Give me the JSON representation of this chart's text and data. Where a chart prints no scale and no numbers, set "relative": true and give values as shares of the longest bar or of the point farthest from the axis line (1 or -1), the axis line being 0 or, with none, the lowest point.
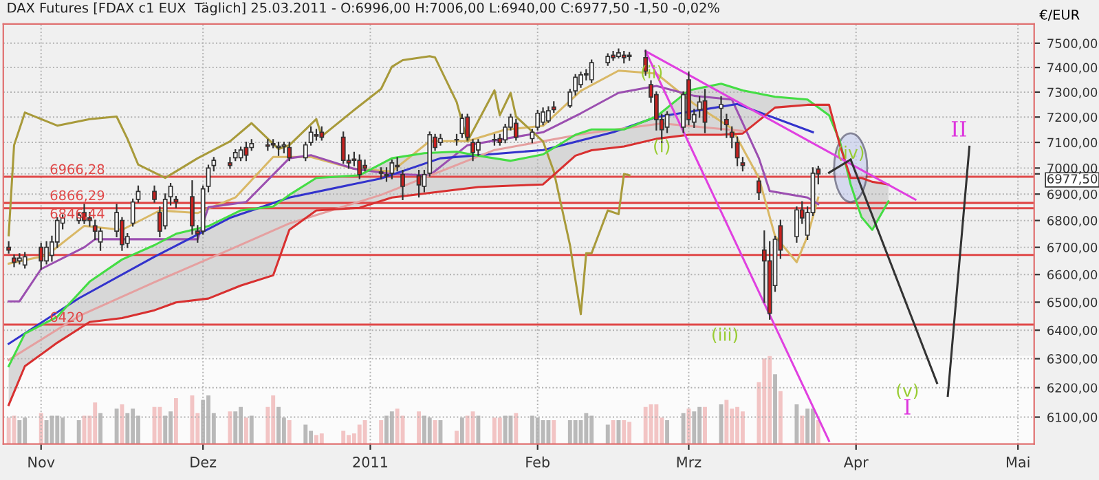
{
  "chart_data": [
    {
      "type": "candlestick",
      "title": "DAX Futures [FDAX c1 EUX  Täglich] 25.03.2011 - O:6996,00 H:7006,00 L:6940,00 C:6977,50 -1,50 -0,02%",
      "ylabel": "€/EUR",
      "log": true,
      "grid": true,
      "xlim": [
        "2010-10-25",
        "2011-05-04"
      ],
      "xticks": [
        {
          "value": "2010-11-01",
          "label": "Nov"
        },
        {
          "value": "2010-12-01",
          "label": "Dez"
        },
        {
          "value": "2011-01-01",
          "label": "2011"
        },
        {
          "value": "2011-02-01",
          "label": "Feb"
        },
        {
          "value": "2011-03-01",
          "label": "Mrz"
        },
        {
          "value": "2011-04-01",
          "label": "Apr"
        },
        {
          "value": "2011-05-01",
          "label": "Mai"
        }
      ],
      "ylim": [
        6010,
        7580
      ],
      "yticks": [
        {
          "value": 6100,
          "label": "6100,00"
        },
        {
          "value": 6200,
          "label": "6200,00"
        },
        {
          "value": 6300,
          "label": "6300,00"
        },
        {
          "value": 6400,
          "label": "6400,00"
        },
        {
          "value": 6500,
          "label": "6500,00"
        },
        {
          "value": 6600,
          "label": "6600,00"
        },
        {
          "value": 6700,
          "label": "6700,00"
        },
        {
          "value": 6800,
          "label": "6800,00"
        },
        {
          "value": 6900,
          "label": "6900,00"
        },
        {
          "value": 6977.5,
          "label": "6977,50"
        },
        {
          "value": 7000,
          "label": "7000,00"
        },
        {
          "value": 7100,
          "label": "7100,00"
        },
        {
          "value": 7200,
          "label": "7200,00"
        },
        {
          "value": 7300,
          "label": "7300,00"
        },
        {
          "value": 7400,
          "label": "7400,00"
        },
        {
          "value": 7500,
          "label": "7500,00"
        }
      ],
      "x": [
        "2010-10-26",
        "2010-10-27",
        "2010-10-28",
        "2010-10-29",
        "2010-11-01",
        "2010-11-02",
        "2010-11-03",
        "2010-11-04",
        "2010-11-05",
        "2010-11-08",
        "2010-11-09",
        "2010-11-10",
        "2010-11-11",
        "2010-11-12",
        "2010-11-15",
        "2010-11-16",
        "2010-11-17",
        "2010-11-18",
        "2010-11-19",
        "2010-11-22",
        "2010-11-23",
        "2010-11-24",
        "2010-11-25",
        "2010-11-26",
        "2010-11-29",
        "2010-11-30",
        "2010-12-01",
        "2010-12-02",
        "2010-12-03",
        "2010-12-06",
        "2010-12-07",
        "2010-12-08",
        "2010-12-09",
        "2010-12-10",
        "2010-12-13",
        "2010-12-14",
        "2010-12-15",
        "2010-12-16",
        "2010-12-17",
        "2010-12-20",
        "2010-12-21",
        "2010-12-22",
        "2010-12-23",
        "2010-12-27",
        "2010-12-28",
        "2010-12-29",
        "2010-12-30",
        "2010-12-31",
        "2011-01-03",
        "2011-01-04",
        "2011-01-05",
        "2011-01-06",
        "2011-01-07",
        "2011-01-10",
        "2011-01-11",
        "2011-01-12",
        "2011-01-13",
        "2011-01-14",
        "2011-01-17",
        "2011-01-18",
        "2011-01-19",
        "2011-01-20",
        "2011-01-21",
        "2011-01-24",
        "2011-01-25",
        "2011-01-26",
        "2011-01-27",
        "2011-01-28",
        "2011-01-31",
        "2011-02-01",
        "2011-02-02",
        "2011-02-03",
        "2011-02-04",
        "2011-02-07",
        "2011-02-08",
        "2011-02-09",
        "2011-02-10",
        "2011-02-11",
        "2011-02-14",
        "2011-02-15",
        "2011-02-16",
        "2011-02-17",
        "2011-02-18",
        "2011-02-21",
        "2011-02-22",
        "2011-02-23",
        "2011-02-24",
        "2011-02-25",
        "2011-02-28",
        "2011-03-01",
        "2011-03-02",
        "2011-03-03",
        "2011-03-04",
        "2011-03-07",
        "2011-03-08",
        "2011-03-09",
        "2011-03-10",
        "2011-03-11",
        "2011-03-14",
        "2011-03-15",
        "2011-03-16",
        "2011-03-17",
        "2011-03-18",
        "2011-03-21",
        "2011-03-22",
        "2011-03-23",
        "2011-03-24",
        "2011-03-25"
      ],
      "ohlc": [
        [
          6700,
          6720,
          6680,
          6690
        ],
        [
          6660,
          6670,
          6630,
          6645
        ],
        [
          6650,
          6675,
          6640,
          6660
        ],
        [
          6635,
          6680,
          6625,
          6665
        ],
        [
          6700,
          6715,
          6620,
          6650
        ],
        [
          6650,
          6720,
          6640,
          6700
        ],
        [
          6670,
          6740,
          6650,
          6720
        ],
        [
          6720,
          6810,
          6700,
          6800
        ],
        [
          6790,
          6820,
          6770,
          6810
        ],
        [
          6800,
          6830,
          6790,
          6820
        ],
        [
          6830,
          6860,
          6790,
          6800
        ],
        [
          6810,
          6830,
          6780,
          6800
        ],
        [
          6780,
          6800,
          6730,
          6760
        ],
        [
          6720,
          6770,
          6690,
          6760
        ],
        [
          6760,
          6860,
          6740,
          6830
        ],
        [
          6800,
          6810,
          6690,
          6710
        ],
        [
          6715,
          6750,
          6700,
          6740
        ],
        [
          6790,
          6880,
          6780,
          6870
        ],
        [
          6880,
          6930,
          6870,
          6910
        ],
        [
          6910,
          6930,
          6870,
          6880
        ],
        [
          6830,
          6850,
          6740,
          6760
        ],
        [
          6780,
          6900,
          6770,
          6880
        ],
        [
          6890,
          6940,
          6860,
          6930
        ],
        [
          6880,
          6890,
          6850,
          6870
        ],
        [
          6890,
          6950,
          6750,
          6780
        ],
        [
          6760,
          6780,
          6720,
          6750
        ],
        [
          6760,
          6930,
          6750,
          6920
        ],
        [
          6930,
          7010,
          6910,
          7000
        ],
        [
          7010,
          7040,
          6990,
          7030
        ],
        [
          7020,
          7040,
          7000,
          7010
        ],
        [
          7040,
          7070,
          7030,
          7060
        ],
        [
          7040,
          7080,
          7030,
          7070
        ],
        [
          7080,
          7100,
          7030,
          7050
        ],
        [
          7080,
          7110,
          7070,
          7095
        ],
        [
          7090,
          7110,
          7070,
          7085
        ],
        [
          7095,
          7110,
          7080,
          7090
        ],
        [
          7080,
          7100,
          7050,
          7085
        ],
        [
          7085,
          7100,
          7060,
          7090
        ],
        [
          7080,
          7100,
          7030,
          7040
        ],
        [
          7040,
          7100,
          7030,
          7090
        ],
        [
          7100,
          7160,
          7090,
          7140
        ],
        [
          7130,
          7150,
          7110,
          7125
        ],
        [
          7140,
          7160,
          7110,
          7120
        ],
        [
          7120,
          7140,
          7020,
          7030
        ],
        [
          7030,
          7050,
          7000,
          7020
        ],
        [
          7035,
          7060,
          7010,
          7030
        ],
        [
          7030,
          7050,
          6960,
          6975
        ],
        [
          7010,
          7030,
          6990,
          7000
        ],
        [
          6985,
          7000,
          6960,
          6980
        ],
        [
          6970,
          7000,
          6950,
          6975
        ],
        [
          6980,
          7030,
          6960,
          7020
        ],
        [
          7010,
          7040,
          6990,
          7005
        ],
        [
          6975,
          6990,
          6880,
          6930
        ],
        [
          6970,
          6990,
          6890,
          6935
        ],
        [
          6930,
          6990,
          6910,
          6975
        ],
        [
          6980,
          7140,
          6970,
          7130
        ],
        [
          7120,
          7130,
          7070,
          7080
        ],
        [
          7100,
          7130,
          7090,
          7115
        ],
        [
          7110,
          7130,
          7090,
          7110
        ],
        [
          7135,
          7210,
          7120,
          7195
        ],
        [
          7200,
          7210,
          7110,
          7120
        ],
        [
          7100,
          7110,
          7030,
          7060
        ],
        [
          7070,
          7110,
          7050,
          7100
        ],
        [
          7110,
          7130,
          7090,
          7110
        ],
        [
          7115,
          7130,
          7090,
          7100
        ],
        [
          7110,
          7170,
          7100,
          7160
        ],
        [
          7160,
          7210,
          7150,
          7200
        ],
        [
          7175,
          7190,
          7110,
          7120
        ],
        [
          7115,
          7150,
          7100,
          7140
        ],
        [
          7160,
          7225,
          7150,
          7215
        ],
        [
          7180,
          7235,
          7170,
          7220
        ],
        [
          7185,
          7240,
          7180,
          7225
        ],
        [
          7240,
          7260,
          7220,
          7230
        ],
        [
          7245,
          7310,
          7240,
          7300
        ],
        [
          7305,
          7370,
          7290,
          7360
        ],
        [
          7330,
          7380,
          7320,
          7370
        ],
        [
          7370,
          7390,
          7350,
          7375
        ],
        [
          7350,
          7430,
          7340,
          7420
        ],
        [
          7420,
          7455,
          7410,
          7445
        ],
        [
          7450,
          7465,
          7430,
          7440
        ],
        [
          7445,
          7475,
          7440,
          7460
        ],
        [
          7450,
          7465,
          7420,
          7440
        ],
        [
          7450,
          7460,
          7430,
          7445
        ],
        [
          7440,
          7470,
          7370,
          7385
        ],
        [
          7330,
          7345,
          7260,
          7280
        ],
        [
          7290,
          7300,
          7150,
          7190
        ],
        [
          7190,
          7210,
          7100,
          7150
        ],
        [
          7160,
          7220,
          7140,
          7210
        ],
        [
          7160,
          7300,
          7140,
          7290
        ],
        [
          7350,
          7380,
          7170,
          7190
        ],
        [
          7180,
          7230,
          7160,
          7210
        ],
        [
          7230,
          7280,
          7200,
          7260
        ],
        [
          7265,
          7310,
          7140,
          7180
        ],
        [
          7235,
          7280,
          7150,
          7250
        ],
        [
          7190,
          7210,
          7120,
          7170
        ],
        [
          7140,
          7160,
          7080,
          7120
        ],
        [
          7100,
          7120,
          7010,
          7040
        ],
        [
          7020,
          7040,
          6990,
          7010
        ],
        [
          6950,
          6960,
          6880,
          6905
        ],
        [
          6690,
          6760,
          6500,
          6650
        ],
        [
          6650,
          6720,
          6440,
          6460
        ],
        [
          6560,
          6740,
          6540,
          6730
        ],
        [
          6780,
          6800,
          6660,
          6690
        ],
        [
          6740,
          6850,
          6720,
          6840
        ],
        [
          6840,
          6870,
          6790,
          6810
        ],
        [
          6745,
          6850,
          6730,
          6830
        ],
        [
          6830,
          7000,
          6820,
          6980
        ],
        [
          6996,
          7006,
          6940,
          6977.5
        ]
      ],
      "series": [
        {
          "type": "line",
          "color": "#d9b866",
          "x": [
            "2010-10-26",
            "2010-11-02",
            "2010-11-09",
            "2010-11-16",
            "2010-11-23",
            "2010-11-30",
            "2010-12-07",
            "2010-12-14",
            "2010-12-21",
            "2010-12-29",
            "2011-01-05",
            "2011-01-12",
            "2011-01-19",
            "2011-01-26",
            "2011-02-02",
            "2011-02-09",
            "2011-02-16",
            "2011-02-23",
            "2011-03-02",
            "2011-03-09",
            "2011-03-14",
            "2011-03-17",
            "2011-03-21",
            "2011-03-23",
            "2011-03-25"
          ],
          "values": [
            6640,
            6670,
            6780,
            6765,
            6838,
            6828,
            6887,
            7043,
            7043,
            6997,
            6987,
            7105,
            7105,
            7150,
            7165,
            7305,
            7387,
            7375,
            7252,
            7155,
            6962,
            6741,
            6645,
            6741,
            6887
          ]
        },
        {
          "type": "line",
          "color": "#9b4fb0",
          "x": [
            "2010-10-26",
            "2010-10-28",
            "2010-11-01",
            "2010-11-09",
            "2010-11-11",
            "2010-11-30",
            "2010-12-02",
            "2010-12-09",
            "2010-12-17",
            "2010-12-21",
            "2010-12-29",
            "2011-01-05",
            "2011-01-12",
            "2011-01-19",
            "2011-02-02",
            "2011-02-09",
            "2011-02-16",
            "2011-02-23",
            "2011-03-02",
            "2011-03-09",
            "2011-03-14",
            "2011-03-16",
            "2011-03-23",
            "2011-03-25"
          ],
          "values": [
            6503,
            6503,
            6620,
            6700,
            6730,
            6730,
            6850,
            6870,
            7038,
            7050,
            6997,
            6977,
            6972,
            7089,
            7140,
            7215,
            7297,
            7325,
            7285,
            7270,
            7038,
            6912,
            6887,
            6862
          ]
        },
        {
          "type": "line",
          "color": "#3333cc",
          "x": [
            "2010-10-26",
            "2010-11-08",
            "2010-11-22",
            "2010-12-06",
            "2010-12-17",
            "2011-01-03",
            "2011-01-14",
            "2011-02-02",
            "2011-02-15",
            "2011-02-23",
            "2011-03-10",
            "2011-03-24"
          ],
          "values": [
            6352,
            6514,
            6665,
            6810,
            6887,
            6960,
            7038,
            7070,
            7140,
            7200,
            7252,
            7140
          ]
        },
        {
          "type": "line",
          "color": "#e5a0a0",
          "x": [
            "2010-10-26",
            "2010-11-08",
            "2010-11-22",
            "2010-12-06",
            "2010-12-17",
            "2011-01-03",
            "2011-01-24",
            "2011-02-10",
            "2011-02-24",
            "2011-03-11"
          ],
          "values": [
            6296,
            6450,
            6572,
            6692,
            6789,
            6897,
            7070,
            7135,
            7175,
            7145
          ]
        },
        {
          "type": "line",
          "color": "#a89a3a",
          "x": [
            "2010-10-26",
            "2010-10-27",
            "2010-10-29",
            "2010-11-04",
            "2010-11-10",
            "2010-11-15",
            "2010-11-17",
            "2010-11-19",
            "2010-11-24",
            "2010-11-30",
            "2010-12-06",
            "2010-12-10",
            "2010-12-15",
            "2010-12-17",
            "2010-12-22",
            "2010-12-23",
            "2010-12-29",
            "2011-01-03",
            "2011-01-05",
            "2011-01-07",
            "2011-01-12",
            "2011-01-13",
            "2011-01-17",
            "2011-01-19",
            "2011-01-24",
            "2011-01-25",
            "2011-01-27",
            "2011-01-28",
            "2011-02-02",
            "2011-02-04",
            "2011-02-07",
            "2011-02-09",
            "2011-02-10",
            "2011-02-11",
            "2011-02-14",
            "2011-02-16",
            "2011-02-17",
            "2011-02-18"
          ],
          "values": [
            6745,
            7089,
            7218,
            7166,
            7192,
            7202,
            7114,
            7013,
            6962,
            7038,
            7104,
            7176,
            7074,
            7089,
            7192,
            7124,
            7228,
            7313,
            7403,
            7430,
            7446,
            7441,
            7260,
            7104,
            7307,
            7207,
            7297,
            7202,
            7104,
            6987,
            6708,
            6457,
            6678,
            6678,
            6838,
            6824,
            6977,
            6972
          ]
        },
        {
          "type": "line",
          "color": "#44dd44",
          "x": [
            "2010-10-26",
            "2010-10-29",
            "2010-11-04",
            "2010-11-10",
            "2010-11-16",
            "2010-11-22",
            "2010-11-26",
            "2010-12-02",
            "2010-12-08",
            "2010-12-14",
            "2010-12-17",
            "2010-12-22",
            "2010-12-30",
            "2011-01-05",
            "2011-01-11",
            "2011-01-17",
            "2011-01-21",
            "2011-01-27",
            "2011-02-02",
            "2011-02-08",
            "2011-02-11",
            "2011-02-17",
            "2011-02-23",
            "2011-03-01",
            "2011-03-07",
            "2011-03-11",
            "2011-03-17",
            "2011-03-23",
            "2011-03-27",
            "2011-03-29",
            "2011-03-31",
            "2011-04-02",
            "2011-04-04",
            "2011-04-07"
          ],
          "values": [
            6274,
            6388,
            6448,
            6574,
            6655,
            6708,
            6750,
            6779,
            6838,
            6853,
            6897,
            6962,
            6972,
            7038,
            7058,
            7064,
            7048,
            7028,
            7053,
            7130,
            7151,
            7151,
            7202,
            7307,
            7334,
            7307,
            7281,
            7270,
            7207,
            7104,
            6937,
            6813,
            6765,
            6872
          ],
          "lower": [
            6141,
            6274,
            6356,
            6429,
            6443,
            6471,
            6499,
            6513,
            6560,
            6597,
            6765,
            6838,
            6848,
            6887,
            6902,
            6917,
            6927,
            6932,
            6937,
            7048,
            7069,
            7084,
            7114,
            7130,
            7130,
            7135,
            7238,
            7249,
            7249,
            7089,
            6962,
            6962,
            6947,
            6937
          ],
          "upper": [
            6274,
            6388,
            6448,
            6574,
            6655,
            6708,
            6750,
            6779,
            6838,
            6853,
            6897,
            6962,
            6972,
            7038,
            7058,
            7064,
            7048,
            7028,
            7053,
            7130,
            7151,
            7151,
            7202,
            7307,
            7334,
            7307,
            7281,
            7270,
            7207,
            7104,
            6937,
            6813,
            6765,
            6872
          ]
        },
        {
          "type": "line",
          "color": "#d83030",
          "x": [
            "2010-10-26",
            "2010-10-29",
            "2010-11-04",
            "2010-11-10",
            "2010-11-16",
            "2010-11-22",
            "2010-11-26",
            "2010-12-02",
            "2010-12-08",
            "2010-12-14",
            "2010-12-17",
            "2010-12-22",
            "2010-12-30",
            "2011-01-05",
            "2011-01-11",
            "2011-01-17",
            "2011-01-21",
            "2011-01-27",
            "2011-02-02",
            "2011-02-08",
            "2011-02-11",
            "2011-02-17",
            "2011-02-23",
            "2011-03-01",
            "2011-03-07",
            "2011-03-11",
            "2011-03-17",
            "2011-03-23",
            "2011-03-27",
            "2011-03-29",
            "2011-03-31",
            "2011-04-02",
            "2011-04-04",
            "2011-04-07"
          ],
          "values": [
            6141,
            6274,
            6356,
            6429,
            6443,
            6471,
            6499,
            6513,
            6560,
            6597,
            6765,
            6838,
            6848,
            6887,
            6902,
            6917,
            6927,
            6932,
            6937,
            7048,
            7069,
            7084,
            7114,
            7130,
            7130,
            7135,
            7238,
            7249,
            7249,
            7089,
            6962,
            6962,
            6947,
            6937
          ]
        },
        {
          "type": "line",
          "color": "#e040e0",
          "x": [
            "2011-02-21",
            "2011-04-12"
          ],
          "values": [
            7467,
            6879
          ]
        },
        {
          "type": "line",
          "color": "#e040e0",
          "x": [
            "2011-02-21",
            "2011-03-27"
          ],
          "values": [
            7467,
            6020
          ]
        },
        {
          "type": "line",
          "color": "#333333",
          "x": [
            "2011-03-27",
            "2011-03-31"
          ],
          "values": [
            6982,
            7033
          ]
        },
        {
          "type": "line",
          "color": "#333333",
          "x": [
            "2011-03-31",
            "2011-04-16"
          ],
          "values": [
            7033,
            6216
          ]
        },
        {
          "type": "line",
          "color": "#333333",
          "x": [
            "2011-04-18",
            "2011-04-22"
          ],
          "values": [
            6172,
            7083
          ]
        }
      ],
      "ref_lines": [
        {
          "axis": "y",
          "value": 6966.28,
          "label": "6966,28",
          "color": "#e04848"
        },
        {
          "axis": "y",
          "value": 6866.29,
          "label": "6866,29",
          "color": "#e04848"
        },
        {
          "axis": "y",
          "value": 6846.44,
          "label": "6846,44",
          "color": "#e04848"
        },
        {
          "axis": "y",
          "value": 6672,
          "label": null,
          "color": "#e04848"
        },
        {
          "axis": "y",
          "value": 6420,
          "label": "6420",
          "color": "#e04848"
        }
      ],
      "annotations": [
        {
          "text": "(i)",
          "x": "2011-02-24",
          "y": 7080
        },
        "(ii)",
        "(iii)",
        {
          "text": "(iv)",
          "x": "2011-03-31",
          "y": 7055
        },
        "(v)",
        "I",
        "II"
      ]
    },
    {
      "type": "bar",
      "relative": true,
      "tick_labels": false,
      "xlim": [
        "2010-10-25",
        "2011-05-04"
      ],
      "x": [
        "2010-10-26",
        "2010-10-27",
        "2010-10-28",
        "2010-10-29",
        "2010-11-01",
        "2010-11-02",
        "2010-11-03",
        "2010-11-04",
        "2010-11-05",
        "2010-11-08",
        "2010-11-09",
        "2010-11-10",
        "2010-11-11",
        "2010-11-12",
        "2010-11-15",
        "2010-11-16",
        "2010-11-17",
        "2010-11-18",
        "2010-11-19",
        "2010-11-22",
        "2010-11-23",
        "2010-11-24",
        "2010-11-25",
        "2010-11-26",
        "2010-11-29",
        "2010-11-30",
        "2010-12-01",
        "2010-12-02",
        "2010-12-03",
        "2010-12-06",
        "2010-12-07",
        "2010-12-08",
        "2010-12-09",
        "2010-12-10",
        "2010-12-13",
        "2010-12-14",
        "2010-12-15",
        "2010-12-16",
        "2010-12-17",
        "2010-12-20",
        "2010-12-21",
        "2010-12-22",
        "2010-12-23",
        "2010-12-27",
        "2010-12-28",
        "2010-12-29",
        "2010-12-30",
        "2010-12-31",
        "2011-01-03",
        "2011-01-04",
        "2011-01-05",
        "2011-01-06",
        "2011-01-07",
        "2011-01-10",
        "2011-01-11",
        "2011-01-12",
        "2011-01-13",
        "2011-01-14",
        "2011-01-17",
        "2011-01-18",
        "2011-01-19",
        "2011-01-20",
        "2011-01-21",
        "2011-01-24",
        "2011-01-25",
        "2011-01-26",
        "2011-01-27",
        "2011-01-28",
        "2011-01-31",
        "2011-02-01",
        "2011-02-02",
        "2011-02-03",
        "2011-02-04",
        "2011-02-07",
        "2011-02-08",
        "2011-02-09",
        "2011-02-10",
        "2011-02-11",
        "2011-02-14",
        "2011-02-15",
        "2011-02-16",
        "2011-02-17",
        "2011-02-18",
        "2011-02-21",
        "2011-02-22",
        "2011-02-23",
        "2011-02-24",
        "2011-02-25",
        "2011-02-28",
        "2011-03-01",
        "2011-03-02",
        "2011-03-03",
        "2011-03-04",
        "2011-03-07",
        "2011-03-08",
        "2011-03-09",
        "2011-03-10",
        "2011-03-11",
        "2011-03-14",
        "2011-03-15",
        "2011-03-16",
        "2011-03-17",
        "2011-03-18",
        "2011-03-21",
        "2011-03-22",
        "2011-03-23",
        "2011-03-24",
        "2011-03-25"
      ],
      "values": [
        0.3,
        0.32,
        0.27,
        0.3,
        0.35,
        0.27,
        0.32,
        0.32,
        0.3,
        0.27,
        0.32,
        0.32,
        0.47,
        0.35,
        0.4,
        0.45,
        0.35,
        0.4,
        0.32,
        0.42,
        0.42,
        0.32,
        0.37,
        0.52,
        0.55,
        0.35,
        0.5,
        0.55,
        0.35,
        0.37,
        0.37,
        0.42,
        0.3,
        0.32,
        0.42,
        0.55,
        0.42,
        0.3,
        0.27,
        0.22,
        0.15,
        0.1,
        0.12,
        0.15,
        0.1,
        0.12,
        0.22,
        0.27,
        0.27,
        0.32,
        0.37,
        0.4,
        0.32,
        0.37,
        0.32,
        0.3,
        0.27,
        0.27,
        0.15,
        0.3,
        0.32,
        0.37,
        0.32,
        0.3,
        0.3,
        0.32,
        0.32,
        0.35,
        0.32,
        0.3,
        0.27,
        0.27,
        0.27,
        0.27,
        0.27,
        0.27,
        0.35,
        0.32,
        0.22,
        0.27,
        0.27,
        0.27,
        0.25,
        0.42,
        0.45,
        0.45,
        0.3,
        0.27,
        0.35,
        0.4,
        0.37,
        0.42,
        0.42,
        0.45,
        0.5,
        0.4,
        0.42,
        0.37,
        0.7,
        0.97,
        1,
        0.79,
        0.6,
        0.45,
        0.32,
        0.4,
        0.4,
        0.27
      ],
      "colors": [
        "#f2c4c4",
        "#f2c4c4",
        "#b9b9b9",
        "#b9b9b9",
        "#f2c4c4",
        "#b9b9b9",
        "#b9b9b9",
        "#b9b9b9",
        "#b9b9b9",
        "#b9b9b9",
        "#f2c4c4",
        "#f2c4c4",
        "#f2c4c4",
        "#b9b9b9",
        "#b9b9b9",
        "#f2c4c4",
        "#b9b9b9",
        "#b9b9b9",
        "#b9b9b9",
        "#f2c4c4",
        "#f2c4c4",
        "#b9b9b9",
        "#b9b9b9",
        "#f2c4c4",
        "#f2c4c4",
        "#f2c4c4",
        "#b9b9b9",
        "#b9b9b9",
        "#b9b9b9",
        "#f2c4c4",
        "#b9b9b9",
        "#b9b9b9",
        "#f2c4c4",
        "#b9b9b9",
        "#f2c4c4",
        "#f2c4c4",
        "#b9b9b9",
        "#b9b9b9",
        "#f2c4c4",
        "#b9b9b9",
        "#b9b9b9",
        "#f2c4c4",
        "#f2c4c4",
        "#f2c4c4",
        "#f2c4c4",
        "#f2c4c4",
        "#f2c4c4",
        "#f2c4c4",
        "#f2c4c4",
        "#b9b9b9",
        "#b9b9b9",
        "#f2c4c4",
        "#f2c4c4",
        "#f2c4c4",
        "#b9b9b9",
        "#b9b9b9",
        "#f2c4c4",
        "#b9b9b9",
        "#f2c4c4",
        "#b9b9b9",
        "#f2c4c4",
        "#f2c4c4",
        "#b9b9b9",
        "#f2c4c4",
        "#f2c4c4",
        "#b9b9b9",
        "#b9b9b9",
        "#f2c4c4",
        "#b9b9b9",
        "#b9b9b9",
        "#b9b9b9",
        "#b9b9b9",
        "#f2c4c4",
        "#b9b9b9",
        "#b9b9b9",
        "#b9b9b9",
        "#b9b9b9",
        "#b9b9b9",
        "#b9b9b9",
        "#f2c4c4",
        "#b9b9b9",
        "#f2c4c4",
        "#f2c4c4",
        "#f2c4c4",
        "#f2c4c4",
        "#f2c4c4",
        "#f2c4c4",
        "#b9b9b9",
        "#b9b9b9",
        "#f2c4c4",
        "#b9b9b9",
        "#b9b9b9",
        "#f2c4c4",
        "#b9b9b9",
        "#f2c4c4",
        "#f2c4c4",
        "#f2c4c4",
        "#f2c4c4",
        "#f2c4c4",
        "#f2c4c4",
        "#f2c4c4",
        "#b9b9b9",
        "#f2c4c4",
        "#b9b9b9",
        "#f2c4c4",
        "#b9b9b9",
        "#b9b9b9",
        "#f2c4c4"
      ]
    }
  ]
}
